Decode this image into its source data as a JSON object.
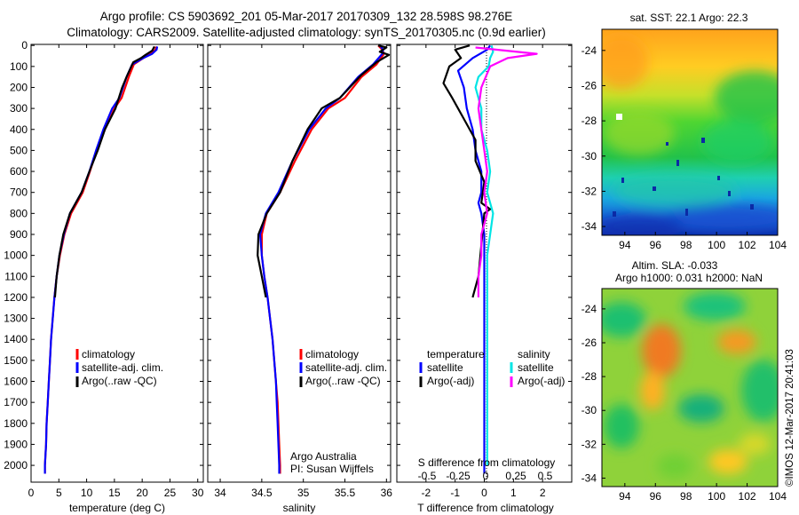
{
  "title_line1": "Argo profile: CS 5903692_201 05-Mar-2017 20170309_132 28.598S 98.276E",
  "title_line2": "Climatology: CARS2009. Satellite-adjusted climatology: synTS_20170305.nc (0.9d earlier)",
  "footer": "©IMOS 12-Mar-2017 20:41:03",
  "colors": {
    "climatology": "#ff0000",
    "satellite": "#0000ff",
    "argo": "#000000",
    "sat_salinity": "#00e5e5",
    "argo_adj_salinity": "#ff00ff"
  },
  "chart_data": [
    {
      "type": "line",
      "name": "temperature",
      "xlabel": "temperature (deg C)",
      "ylabel": "",
      "xlim": [
        0,
        31
      ],
      "ylim": [
        2080,
        -5
      ],
      "xticks": [
        0,
        5,
        10,
        15,
        20,
        25,
        30
      ],
      "yticks": [
        0,
        100,
        200,
        300,
        400,
        500,
        600,
        700,
        800,
        900,
        1000,
        1100,
        1200,
        1300,
        1400,
        1500,
        1600,
        1700,
        1800,
        1900,
        2000
      ],
      "legend": [
        "climatology",
        "satellite-adj. clim.",
        "Argo(..raw -QC)"
      ],
      "legend_position": "lower-left",
      "series": [
        {
          "name": "climatology",
          "values": [
            [
              22.5,
              5
            ],
            [
              22.4,
              20
            ],
            [
              21.5,
              40
            ],
            [
              20.2,
              60
            ],
            [
              18.5,
              90
            ],
            [
              17.6,
              150
            ],
            [
              16.3,
              250
            ],
            [
              15,
              300
            ],
            [
              13.3,
              400
            ],
            [
              11.8,
              500
            ],
            [
              10.6,
              600
            ],
            [
              9.3,
              700
            ],
            [
              7.2,
              800
            ],
            [
              6,
              900
            ],
            [
              5.2,
              1000
            ],
            [
              4.6,
              1100
            ],
            [
              4.2,
              1200
            ],
            [
              3.9,
              1300
            ],
            [
              3.6,
              1400
            ],
            [
              3.4,
              1500
            ],
            [
              3.2,
              1600
            ],
            [
              3,
              1700
            ],
            [
              2.8,
              1800
            ],
            [
              2.7,
              1900
            ],
            [
              2.5,
              2000
            ],
            [
              2.5,
              2040
            ]
          ]
        },
        {
          "name": "satellite-adj. clim.",
          "values": [
            [
              22.7,
              5
            ],
            [
              22.6,
              20
            ],
            [
              21.8,
              40
            ],
            [
              20.2,
              60
            ],
            [
              18.2,
              90
            ],
            [
              17.2,
              150
            ],
            [
              15.9,
              250
            ],
            [
              14.6,
              300
            ],
            [
              13,
              400
            ],
            [
              11.7,
              500
            ],
            [
              10.5,
              600
            ],
            [
              9.1,
              700
            ],
            [
              7,
              800
            ],
            [
              5.9,
              900
            ],
            [
              5.1,
              1000
            ],
            [
              4.6,
              1100
            ],
            [
              4.2,
              1200
            ],
            [
              3.9,
              1300
            ],
            [
              3.6,
              1400
            ],
            [
              3.4,
              1500
            ],
            [
              3.2,
              1600
            ],
            [
              3,
              1700
            ],
            [
              2.8,
              1800
            ],
            [
              2.7,
              1900
            ],
            [
              2.5,
              2000
            ],
            [
              2.5,
              2040
            ]
          ]
        },
        {
          "name": "Argo(..raw -QC)",
          "values": [
            [
              22.2,
              5
            ],
            [
              21.8,
              25
            ],
            [
              20.6,
              45
            ],
            [
              19.8,
              60
            ],
            [
              18.4,
              80
            ],
            [
              17.2,
              150
            ],
            [
              16.4,
              200
            ],
            [
              15.2,
              300
            ],
            [
              13.3,
              400
            ],
            [
              12,
              500
            ],
            [
              10.5,
              600
            ],
            [
              9.1,
              700
            ],
            [
              7,
              800
            ],
            [
              5.8,
              900
            ],
            [
              5.1,
              1000
            ],
            [
              4.6,
              1100
            ],
            [
              4.3,
              1200
            ]
          ]
        }
      ]
    },
    {
      "type": "line",
      "name": "salinity",
      "xlabel": "salinity",
      "ylabel": "",
      "xlim": [
        33.85,
        36.05
      ],
      "ylim": [
        2080,
        -5
      ],
      "xticks": [
        34,
        34.5,
        35,
        35.5,
        36
      ],
      "legend": [
        "climatology",
        "satellite-adj. clim.",
        "Argo(..raw -QC)"
      ],
      "legend_position": "lower-right",
      "annotations": [
        "Argo Australia",
        "PI: Susan Wijffels"
      ],
      "series": [
        {
          "name": "climatology",
          "values": [
            [
              35.9,
              0
            ],
            [
              35.95,
              20
            ],
            [
              35.97,
              40
            ],
            [
              35.88,
              90
            ],
            [
              35.7,
              150
            ],
            [
              35.5,
              250
            ],
            [
              35.3,
              300
            ],
            [
              35.1,
              400
            ],
            [
              34.9,
              550
            ],
            [
              34.72,
              700
            ],
            [
              34.56,
              800
            ],
            [
              34.5,
              900
            ],
            [
              34.5,
              1000
            ],
            [
              34.53,
              1100
            ],
            [
              34.57,
              1200
            ],
            [
              34.6,
              1300
            ],
            [
              34.63,
              1400
            ],
            [
              34.65,
              1500
            ],
            [
              34.67,
              1600
            ],
            [
              34.69,
              1700
            ],
            [
              34.7,
              1800
            ],
            [
              34.71,
              1900
            ],
            [
              34.72,
              2000
            ],
            [
              34.72,
              2040
            ]
          ]
        },
        {
          "name": "satellite-adj. clim.",
          "values": [
            [
              35.92,
              0
            ],
            [
              35.96,
              20
            ],
            [
              35.95,
              40
            ],
            [
              35.84,
              90
            ],
            [
              35.66,
              150
            ],
            [
              35.44,
              250
            ],
            [
              35.27,
              300
            ],
            [
              35.07,
              400
            ],
            [
              34.87,
              550
            ],
            [
              34.7,
              700
            ],
            [
              34.55,
              800
            ],
            [
              34.48,
              900
            ],
            [
              34.5,
              1000
            ],
            [
              34.53,
              1100
            ],
            [
              34.57,
              1200
            ],
            [
              34.6,
              1300
            ],
            [
              34.63,
              1400
            ],
            [
              34.65,
              1500
            ],
            [
              34.67,
              1600
            ],
            [
              34.68,
              1700
            ],
            [
              34.69,
              1800
            ],
            [
              34.7,
              1900
            ],
            [
              34.71,
              2000
            ],
            [
              34.71,
              2040
            ]
          ]
        },
        {
          "name": "Argo(..raw -QC)",
          "values": [
            [
              35.9,
              0
            ],
            [
              36.0,
              10
            ],
            [
              35.92,
              30
            ],
            [
              36.03,
              45
            ],
            [
              35.88,
              80
            ],
            [
              35.7,
              140
            ],
            [
              35.44,
              250
            ],
            [
              35.22,
              300
            ],
            [
              35.05,
              400
            ],
            [
              34.87,
              550
            ],
            [
              34.72,
              700
            ],
            [
              34.56,
              800
            ],
            [
              34.46,
              900
            ],
            [
              34.45,
              1000
            ],
            [
              34.5,
              1100
            ],
            [
              34.55,
              1200
            ]
          ]
        }
      ]
    },
    {
      "type": "line",
      "name": "difference from climatology",
      "xlabel": "T difference from climatology",
      "top_label": "S difference from climatology",
      "xlim": [
        -3,
        3
      ],
      "ylim": [
        2080,
        -5
      ],
      "xticks": [
        -2,
        -1,
        0,
        1,
        2
      ],
      "top_ticks": [
        "-0.5",
        "-0.25",
        "0",
        "0.25",
        "0.5"
      ],
      "legend_temperature_title": "temperature",
      "legend_salinity_title": "salinity",
      "legend": [
        "satellite",
        "Argo(-adj)",
        "satellite",
        "Argo(-adj)"
      ],
      "series": [
        {
          "name": "temperature satellite",
          "values": [
            [
              0.2,
              0
            ],
            [
              0.1,
              20
            ],
            [
              -0.4,
              60
            ],
            [
              -0.9,
              120
            ],
            [
              -0.7,
              200
            ],
            [
              -0.6,
              300
            ],
            [
              -0.4,
              400
            ],
            [
              -0.3,
              500
            ],
            [
              -0.1,
              600
            ],
            [
              -0.1,
              700
            ],
            [
              -0.2,
              750
            ],
            [
              -0.1,
              800
            ],
            [
              0,
              900
            ],
            [
              0,
              1000
            ],
            [
              0,
              1100
            ],
            [
              0,
              1200
            ],
            [
              0,
              1500
            ],
            [
              0,
              2000
            ],
            [
              0,
              2040
            ]
          ]
        },
        {
          "name": "temperature Argo(-adj)",
          "values": [
            [
              -0.5,
              0
            ],
            [
              -1,
              20
            ],
            [
              -0.8,
              60
            ],
            [
              -1.2,
              100
            ],
            [
              -1.4,
              180
            ],
            [
              -1.1,
              250
            ],
            [
              -0.7,
              350
            ],
            [
              -0.3,
              450
            ],
            [
              -0.3,
              550
            ],
            [
              0,
              650
            ],
            [
              -0.1,
              750
            ],
            [
              0.2,
              780
            ],
            [
              0,
              800
            ],
            [
              -0.2,
              1100
            ],
            [
              -0.4,
              1200
            ]
          ]
        },
        {
          "name": "salinity satellite",
          "values": [
            [
              0.25,
              0
            ],
            [
              0.3,
              30
            ],
            [
              0.2,
              60
            ],
            [
              0.15,
              100
            ],
            [
              -0.2,
              150
            ],
            [
              -0.3,
              200
            ],
            [
              -0.1,
              300
            ],
            [
              -0.1,
              400
            ],
            [
              0.1,
              500
            ],
            [
              0.2,
              600
            ],
            [
              0.1,
              700
            ],
            [
              0.3,
              800
            ],
            [
              0.2,
              900
            ],
            [
              0.1,
              1000
            ],
            [
              0.1,
              1100
            ],
            [
              0.1,
              1200
            ],
            [
              0.1,
              1500
            ],
            [
              0.1,
              1900
            ],
            [
              0.1,
              2000
            ]
          ]
        },
        {
          "name": "salinity Argo(-adj)",
          "values": [
            [
              -0.3,
              10
            ],
            [
              1.8,
              40
            ],
            [
              0.8,
              60
            ],
            [
              0.2,
              100
            ],
            [
              -0.1,
              200
            ],
            [
              -0.2,
              300
            ],
            [
              -0.1,
              400
            ],
            [
              0,
              500
            ],
            [
              0.1,
              600
            ],
            [
              0,
              700
            ],
            [
              0.1,
              800
            ],
            [
              -0.1,
              900
            ],
            [
              -0.1,
              1000
            ],
            [
              -0.2,
              1100
            ],
            [
              -0.2,
              1200
            ]
          ]
        }
      ]
    },
    {
      "type": "heatmap",
      "name": "sat SST map",
      "title": "sat. SST: 22.1  Argo: 22.3",
      "xticks": [
        94,
        96,
        98,
        100,
        102,
        104
      ],
      "yticks": [
        -24,
        -26,
        -28,
        -30,
        -32,
        -34
      ],
      "xlim": [
        92.5,
        104
      ],
      "ylim": [
        -34.5,
        -22.8
      ],
      "argo_position": [
        98.276,
        -28.598
      ]
    },
    {
      "type": "heatmap",
      "name": "altimetry SLA map",
      "title_line1": "Altim. SLA: -0.033",
      "title_line2": "Argo h1000: 0.031  h2000: NaN",
      "xticks": [
        94,
        96,
        98,
        100,
        102,
        104
      ],
      "yticks": [
        -24,
        -26,
        -28,
        -30,
        -32,
        -34
      ],
      "xlim": [
        92.5,
        104
      ],
      "ylim": [
        -34.5,
        -22.8
      ]
    }
  ]
}
